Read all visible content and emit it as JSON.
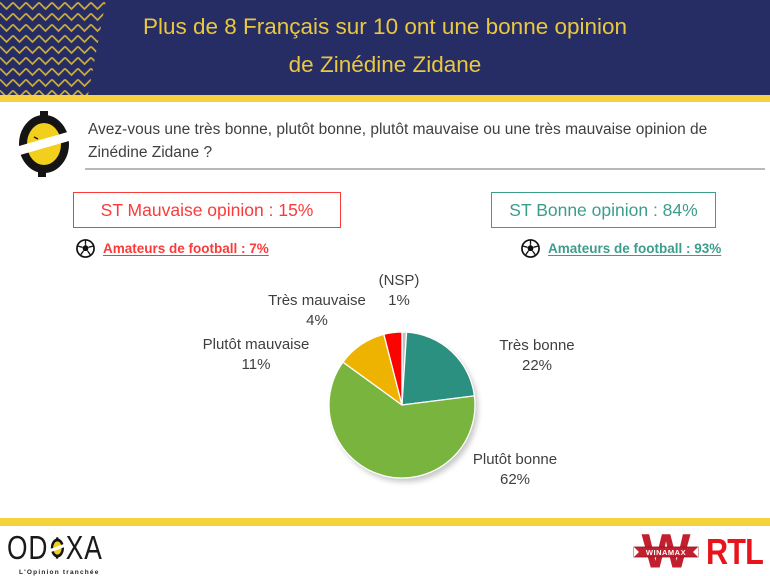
{
  "banner": {
    "title_line1": "Plus de 8 Français sur 10 ont une bonne opinion",
    "title_line2": "de Zinédine Zidane"
  },
  "question": {
    "text": "Avez-vous une très bonne, plutôt bonne, plutôt mauvaise ou une très mauvaise opinion de Zinédine Zidane ?"
  },
  "summary": {
    "negative": {
      "box_label": "ST Mauvaise opinion : 15%",
      "football_label": "Amateurs de football : 7%"
    },
    "positive": {
      "box_label": "ST Bonne opinion : 84%",
      "football_label": "Amateurs de football : 93%"
    }
  },
  "chart_data": {
    "type": "pie",
    "start_angle_deg": 0,
    "direction": "clockwise",
    "legend_position": "outside-labels",
    "slices": [
      {
        "label": "(NSP)",
        "value": 1,
        "pct": "1%",
        "color": "#c2c2c2"
      },
      {
        "label": "Très bonne",
        "value": 22,
        "pct": "22%",
        "color": "#2b9080"
      },
      {
        "label": "Plutôt bonne",
        "value": 62,
        "pct": "62%",
        "color": "#78b43e"
      },
      {
        "label": "Plutôt mauvaise",
        "value": 11,
        "pct": "11%",
        "color": "#eeb200"
      },
      {
        "label": "Très mauvaise",
        "value": 4,
        "pct": "4%",
        "color": "#fb0400"
      }
    ]
  },
  "footer": {
    "odoxa_left": "OD",
    "odoxa_right": "XA",
    "odoxa_tagline": "L'Opinion tranchée",
    "winamax_label": "WINAMAX",
    "rtl_label": "RTL"
  },
  "colors": {
    "navy": "#262c64",
    "gold": "#e9c83f",
    "bar-yellow": "#f6d33e",
    "text-dark": "#3f3f3f",
    "negative-red": "#fb3a3a",
    "positive-teal": "#3d9d8d",
    "winamax-red": "#c2202e",
    "rtl-red": "#e8131b"
  }
}
